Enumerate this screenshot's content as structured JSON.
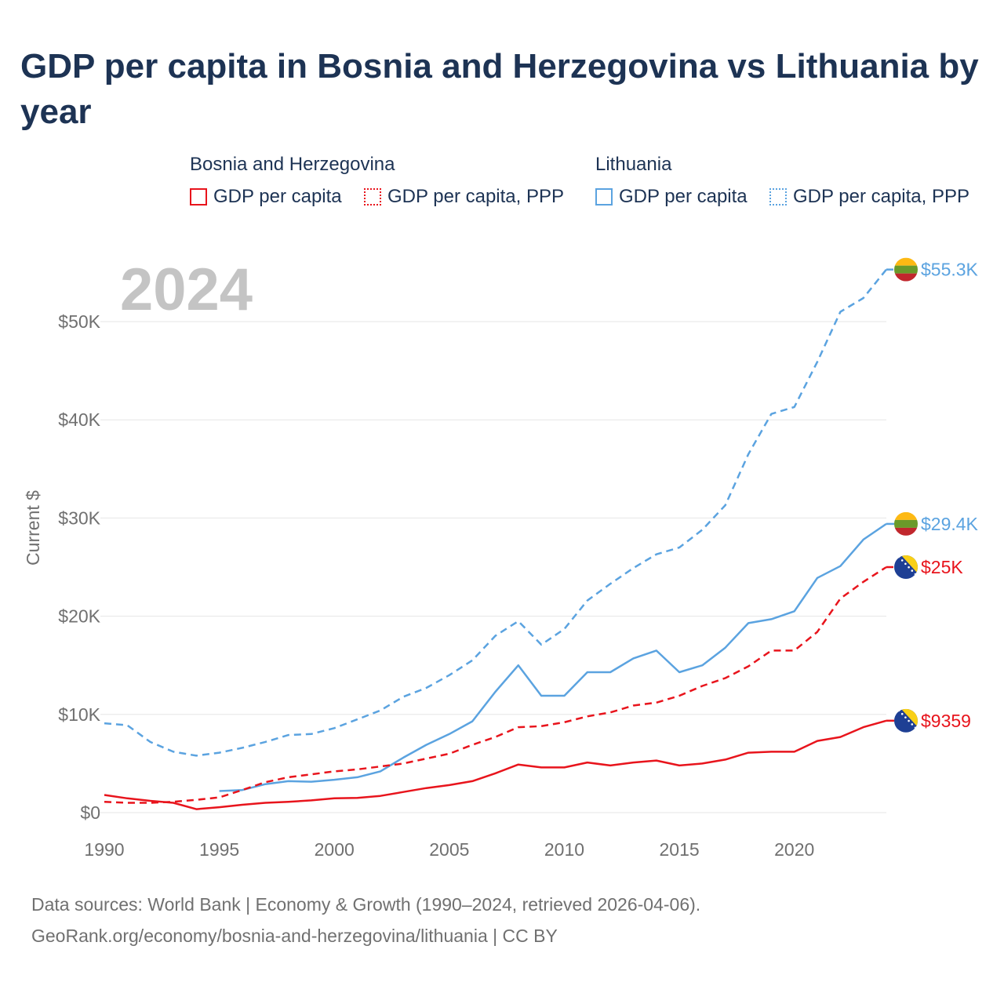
{
  "title": "GDP per capita in Bosnia and Herzegovina vs Lithuania by year",
  "legend": {
    "groups": [
      {
        "country": "Bosnia and Herzegovina",
        "items": [
          {
            "label": "GDP per capita",
            "color": "#e8141c",
            "style": "solid"
          },
          {
            "label": "GDP per capita, PPP",
            "color": "#e8141c",
            "style": "dotted"
          }
        ]
      },
      {
        "country": "Lithuania",
        "items": [
          {
            "label": "GDP per capita",
            "color": "#5ba3e0",
            "style": "solid"
          },
          {
            "label": "GDP per capita, PPP",
            "color": "#5ba3e0",
            "style": "dotted"
          }
        ]
      }
    ]
  },
  "year_watermark": "2024",
  "source": {
    "line1": "Data sources: World Bank | Economy & Growth (1990–2024, retrieved 2026-04-06).",
    "line2": "GeoRank.org/economy/bosnia-and-herzegovina/lithuania | CC BY"
  },
  "chart_data": {
    "type": "line",
    "title": "GDP per capita in Bosnia and Herzegovina vs Lithuania by year",
    "xlabel": "",
    "ylabel": "Current $",
    "xlim": [
      1990,
      2024
    ],
    "ylim": [
      0,
      55000
    ],
    "x_ticks": [
      1990,
      1995,
      2000,
      2005,
      2010,
      2015,
      2020
    ],
    "y_ticks": [
      0,
      10000,
      20000,
      30000,
      40000,
      50000
    ],
    "y_tick_labels": [
      "$0",
      "$10K",
      "$20K",
      "$30K",
      "$40K",
      "$50K"
    ],
    "grid": true,
    "series": [
      {
        "name": "Lithuania GDP per capita, PPP",
        "country": "Lithuania",
        "color": "#5ba3e0",
        "dash": "dashed",
        "flag": "lithuania",
        "end_label": "$55.3K",
        "x": [
          1990,
          1991,
          1992,
          1993,
          1994,
          1995,
          1996,
          1997,
          1998,
          1999,
          2000,
          2001,
          2002,
          2003,
          2004,
          2005,
          2006,
          2007,
          2008,
          2009,
          2010,
          2011,
          2012,
          2013,
          2014,
          2015,
          2016,
          2017,
          2018,
          2019,
          2020,
          2021,
          2022,
          2023,
          2024
        ],
        "values": [
          9100,
          8900,
          7200,
          6200,
          5800,
          6100,
          6600,
          7200,
          7900,
          8000,
          8600,
          9500,
          10400,
          11800,
          12700,
          14000,
          15500,
          18000,
          19500,
          17100,
          18700,
          21600,
          23300,
          24900,
          26300,
          27000,
          28800,
          31300,
          36500,
          40600,
          41300,
          45900,
          51000,
          52400,
          55300
        ]
      },
      {
        "name": "Lithuania GDP per capita",
        "country": "Lithuania",
        "color": "#5ba3e0",
        "dash": "solid",
        "flag": "lithuania",
        "end_label": "$29.4K",
        "x": [
          1995,
          1996,
          1997,
          1998,
          1999,
          2000,
          2001,
          2002,
          2003,
          2004,
          2005,
          2006,
          2007,
          2008,
          2009,
          2010,
          2011,
          2012,
          2013,
          2014,
          2015,
          2016,
          2017,
          2018,
          2019,
          2020,
          2021,
          2022,
          2023,
          2024
        ],
        "values": [
          2200,
          2300,
          2900,
          3200,
          3150,
          3350,
          3600,
          4200,
          5600,
          6900,
          8000,
          9300,
          12300,
          15000,
          11900,
          11900,
          14300,
          14300,
          15700,
          16500,
          14300,
          15000,
          16800,
          19300,
          19700,
          20500,
          23900,
          25100,
          27800,
          29400
        ]
      },
      {
        "name": "Bosnia and Herzegovina GDP per capita, PPP",
        "country": "Bosnia and Herzegovina",
        "color": "#e8141c",
        "dash": "dashed",
        "flag": "bosnia",
        "end_label": "$25K",
        "x": [
          1990,
          1991,
          1992,
          1993,
          1994,
          1995,
          1996,
          1997,
          1998,
          1999,
          2000,
          2001,
          2002,
          2003,
          2004,
          2005,
          2006,
          2007,
          2008,
          2009,
          2010,
          2011,
          2012,
          2013,
          2014,
          2015,
          2016,
          2017,
          2018,
          2019,
          2020,
          2021,
          2022,
          2023,
          2024
        ],
        "values": [
          1100,
          1000,
          1000,
          1100,
          1300,
          1550,
          2300,
          3100,
          3600,
          3900,
          4200,
          4400,
          4700,
          5000,
          5500,
          6000,
          6900,
          7700,
          8700,
          8800,
          9200,
          9800,
          10200,
          10900,
          11200,
          11900,
          12900,
          13700,
          14900,
          16500,
          16500,
          18400,
          21800,
          23500,
          25000
        ]
      },
      {
        "name": "Bosnia and Herzegovina GDP per capita",
        "country": "Bosnia and Herzegovina",
        "color": "#e8141c",
        "dash": "solid",
        "flag": "bosnia",
        "end_label": "$9359",
        "x": [
          1990,
          1991,
          1992,
          1993,
          1994,
          1995,
          1996,
          1997,
          1998,
          1999,
          2000,
          2001,
          2002,
          2003,
          2004,
          2005,
          2006,
          2007,
          2008,
          2009,
          2010,
          2011,
          2012,
          2013,
          2014,
          2015,
          2016,
          2017,
          2018,
          2019,
          2020,
          2021,
          2022,
          2023,
          2024
        ],
        "values": [
          1800,
          1450,
          1200,
          1000,
          350,
          550,
          800,
          1000,
          1100,
          1250,
          1450,
          1500,
          1700,
          2100,
          2500,
          2800,
          3200,
          4000,
          4900,
          4600,
          4600,
          5100,
          4800,
          5100,
          5300,
          4800,
          5000,
          5400,
          6100,
          6200,
          6200,
          7300,
          7700,
          8700,
          9359
        ]
      }
    ]
  }
}
